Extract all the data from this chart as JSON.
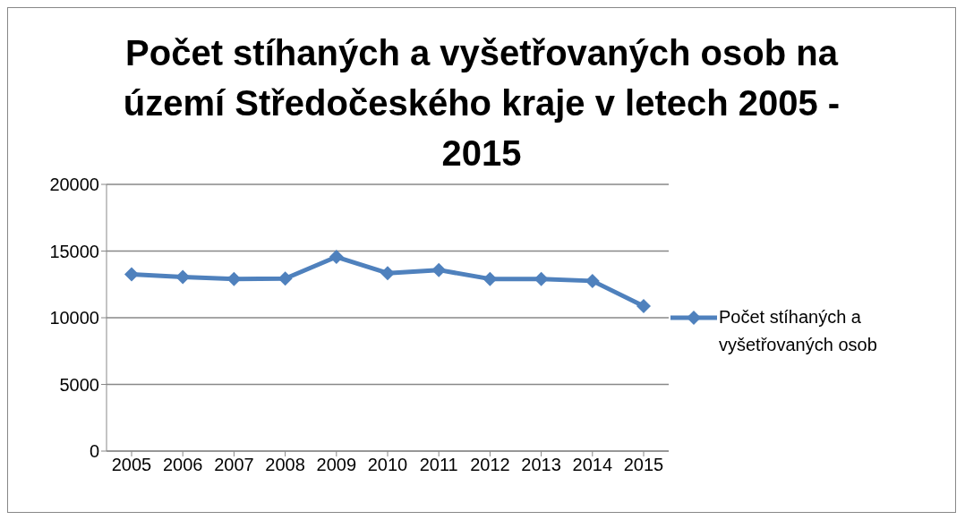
{
  "chart_data": {
    "type": "line",
    "title": "Počet stíhaných a vyšetřovaných osob na území Středočeského kraje v letech 2005 - 2015",
    "categories": [
      "2005",
      "2006",
      "2007",
      "2008",
      "2009",
      "2010",
      "2011",
      "2012",
      "2013",
      "2014",
      "2015"
    ],
    "series": [
      {
        "name": "Počet stíhaných a vyšetřovaných osob",
        "color": "#4f81bd",
        "values": [
          13260,
          13050,
          12910,
          12940,
          14560,
          13340,
          13580,
          12910,
          12910,
          12760,
          10870
        ]
      }
    ],
    "ylim": [
      0,
      20000
    ],
    "yticks": [
      0,
      5000,
      10000,
      15000,
      20000
    ],
    "grid": "y",
    "legend": "right",
    "marker": "diamond",
    "line_style": "solid"
  }
}
